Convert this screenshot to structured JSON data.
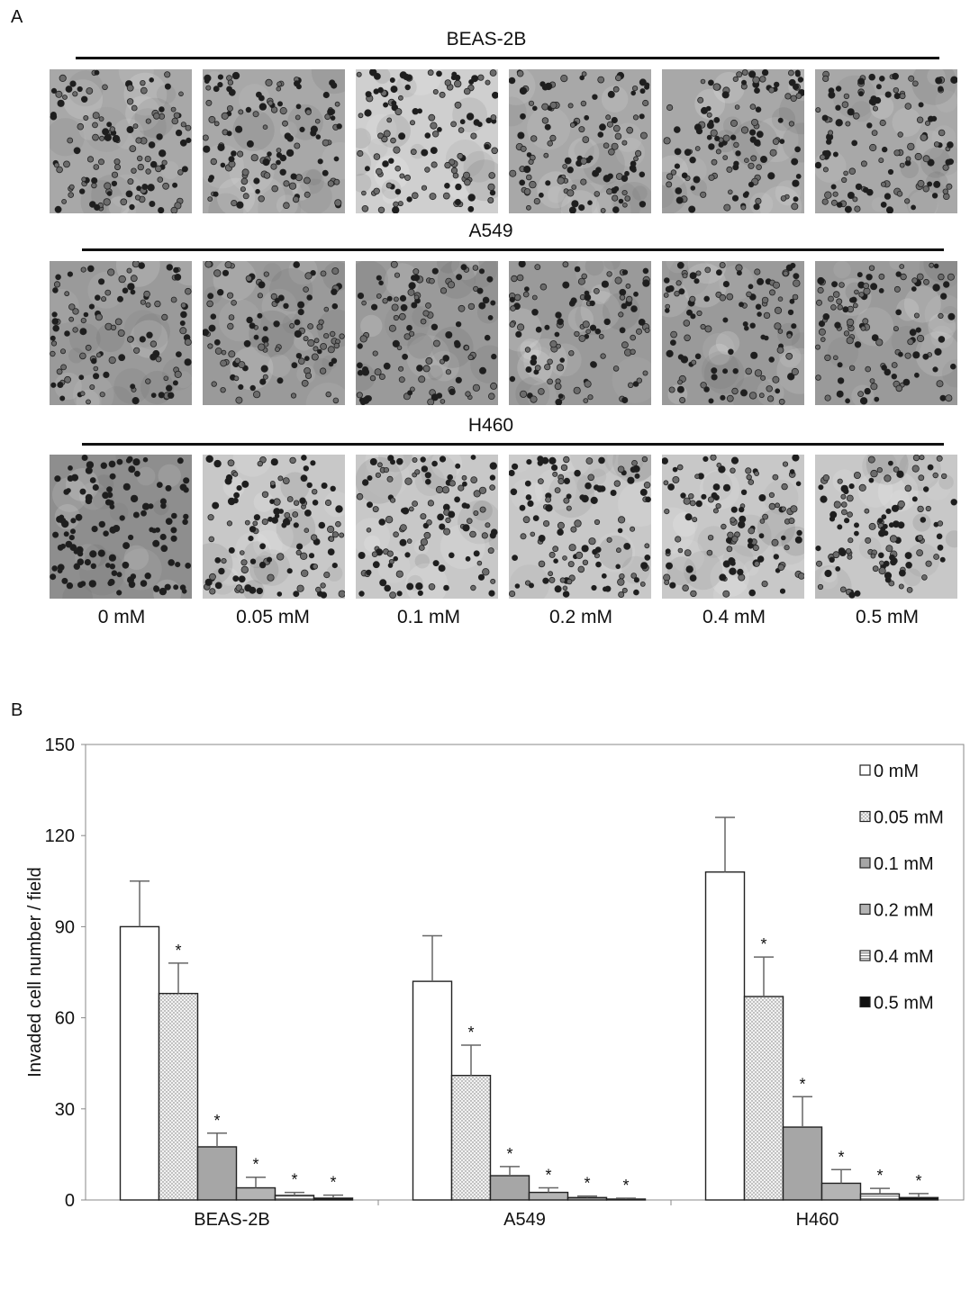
{
  "panels": {
    "a": "A",
    "b": "B"
  },
  "rows": [
    {
      "title": "BEAS-2B",
      "tone": "#a8a8a8",
      "density": 210
    },
    {
      "title": "A549",
      "tone": "#9a9a9a",
      "density": 190
    },
    {
      "title": "H460",
      "tone": "#c8c8c8",
      "density": 200
    }
  ],
  "concentrations": [
    "0 mM",
    "0.05 mM",
    "0.1 mM",
    "0.2 mM",
    "0.4 mM",
    "0.5 mM"
  ],
  "chart_data": {
    "type": "bar",
    "title": "",
    "xlabel": "",
    "ylabel": "Invaded cell number / field",
    "ylim": [
      0,
      150
    ],
    "yticks": [
      0,
      30,
      60,
      90,
      120,
      150
    ],
    "categories": [
      "BEAS-2B",
      "A549",
      "H460"
    ],
    "legend_position": "top-right",
    "series": [
      {
        "name": "0 mM",
        "fill": "#ffffff",
        "values": [
          90,
          72,
          108
        ],
        "errors": [
          15,
          15,
          18
        ],
        "significant": [
          false,
          false,
          false
        ]
      },
      {
        "name": "0.05 mM",
        "fill": "dots",
        "values": [
          68,
          41,
          67
        ],
        "errors": [
          10,
          10,
          13
        ],
        "significant": [
          true,
          true,
          true
        ]
      },
      {
        "name": "0.1 mM",
        "fill": "#a6a6a6",
        "values": [
          17.5,
          8,
          24
        ],
        "errors": [
          4.5,
          3,
          10
        ],
        "significant": [
          true,
          true,
          true
        ]
      },
      {
        "name": "0.2 mM",
        "fill": "#b4b4b4",
        "values": [
          4,
          2.5,
          5.5
        ],
        "errors": [
          3.5,
          1.5,
          4.5
        ],
        "significant": [
          true,
          true,
          true
        ]
      },
      {
        "name": "0.4 mM",
        "fill": "hatch",
        "values": [
          1.5,
          0.8,
          2
        ],
        "errors": [
          1,
          0.5,
          1.8
        ],
        "significant": [
          true,
          true,
          true
        ]
      },
      {
        "name": "0.5 mM",
        "fill": "#111111",
        "values": [
          0.6,
          0.3,
          0.8
        ],
        "errors": [
          1,
          0.3,
          1.3
        ],
        "significant": [
          true,
          true,
          true
        ]
      }
    ],
    "significance_marker": "*"
  }
}
